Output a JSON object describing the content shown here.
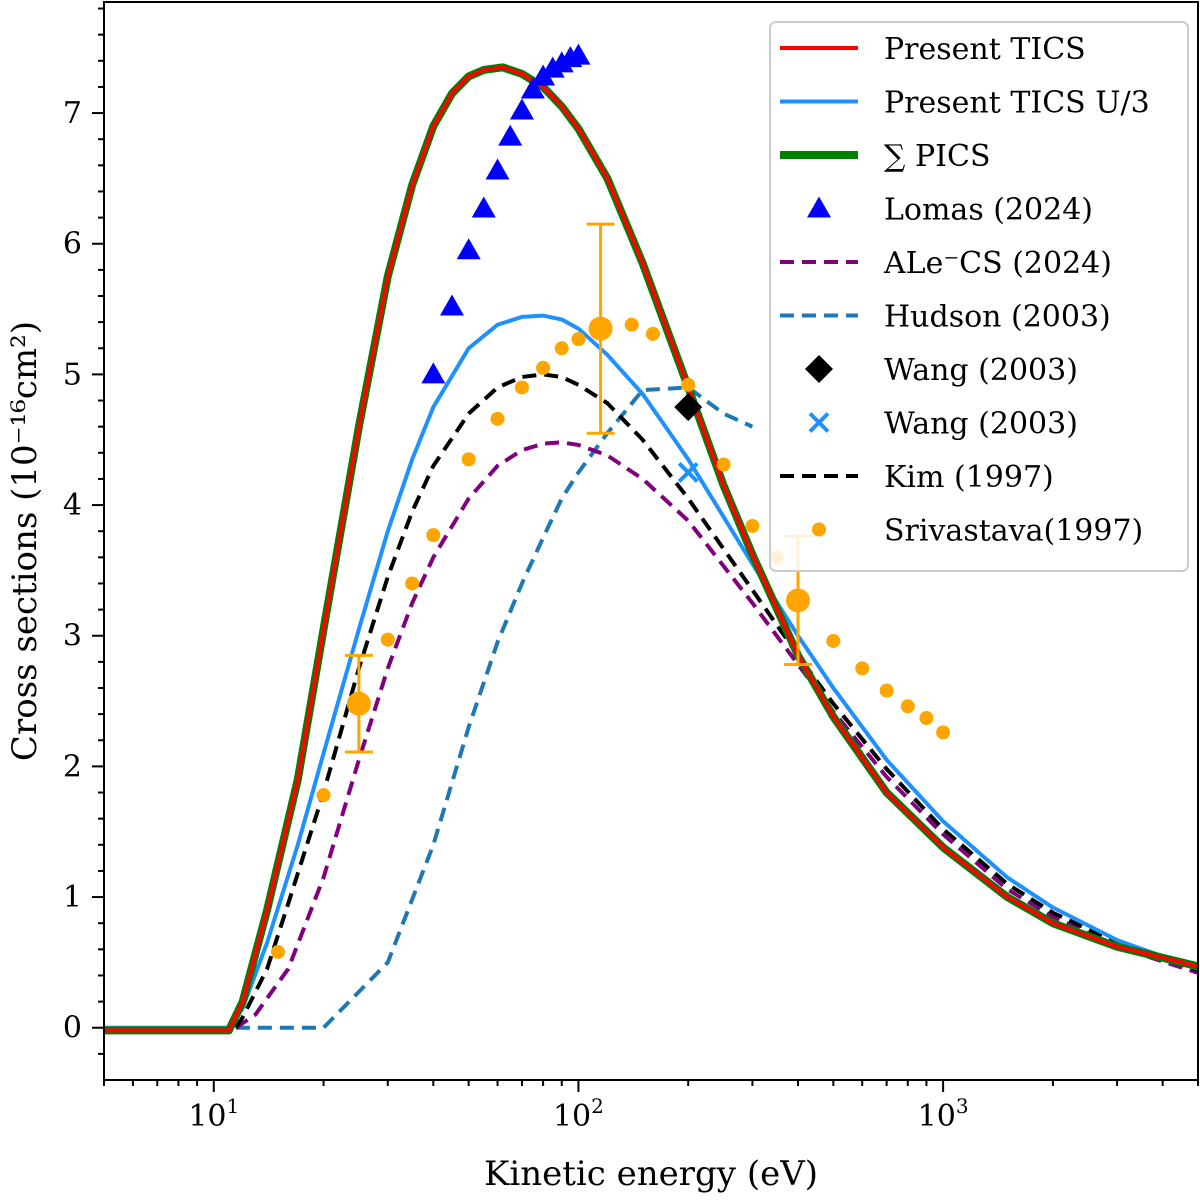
{
  "chart_data": {
    "type": "line",
    "xlabel": "Kinetic energy (eV)",
    "ylabel": "Cross sections (10⁻¹⁶cm²)",
    "xscale": "log",
    "xlim": [
      5,
      5000
    ],
    "ylim": [
      -0.4,
      7.85
    ],
    "x_ticks": [
      {
        "value": 10,
        "base": "10",
        "exp": "1"
      },
      {
        "value": 100,
        "base": "10",
        "exp": "2"
      },
      {
        "value": 1000,
        "base": "10",
        "exp": "3"
      }
    ],
    "y_ticks": [
      {
        "value": 0,
        "label": "0"
      },
      {
        "value": 1,
        "label": "1"
      },
      {
        "value": 2,
        "label": "2"
      },
      {
        "value": 3,
        "label": "3"
      },
      {
        "value": 4,
        "label": "4"
      },
      {
        "value": 5,
        "label": "5"
      },
      {
        "value": 6,
        "label": "6"
      },
      {
        "value": 7,
        "label": "7"
      }
    ],
    "grid": false,
    "legend_position": "top-right",
    "series": [
      {
        "name": "∑ PICS",
        "kind": "line",
        "color": "#008000",
        "dash": "",
        "x": [
          5,
          11,
          12,
          14,
          17,
          20,
          25,
          30,
          35,
          40,
          45,
          50,
          55,
          62,
          70,
          80,
          90,
          100,
          120,
          150,
          200,
          250,
          300,
          400,
          500,
          700,
          1000,
          1500,
          2000,
          3000,
          5000
        ],
        "y": [
          -0.02,
          -0.02,
          0.2,
          0.9,
          1.9,
          3.05,
          4.6,
          5.75,
          6.45,
          6.9,
          7.15,
          7.28,
          7.33,
          7.35,
          7.3,
          7.2,
          7.05,
          6.88,
          6.5,
          5.85,
          4.9,
          4.15,
          3.62,
          2.85,
          2.38,
          1.8,
          1.38,
          1.0,
          0.8,
          0.62,
          0.47
        ]
      },
      {
        "name": "Present TICS",
        "kind": "line",
        "color": "#ff0000",
        "dash": "",
        "x": [
          5,
          11,
          12,
          14,
          17,
          20,
          25,
          30,
          35,
          40,
          45,
          50,
          55,
          62,
          70,
          80,
          90,
          100,
          120,
          150,
          200,
          250,
          300,
          400,
          500,
          700,
          1000,
          1500,
          2000,
          3000,
          5000
        ],
        "y": [
          -0.02,
          -0.02,
          0.2,
          0.9,
          1.9,
          3.05,
          4.6,
          5.75,
          6.45,
          6.9,
          7.15,
          7.28,
          7.33,
          7.35,
          7.3,
          7.2,
          7.05,
          6.88,
          6.5,
          5.85,
          4.9,
          4.15,
          3.62,
          2.85,
          2.38,
          1.8,
          1.38,
          1.0,
          0.8,
          0.62,
          0.47
        ]
      },
      {
        "name": "Present TICS U/3",
        "kind": "line",
        "color": "#1e90ff",
        "dash": "",
        "x": [
          5,
          11,
          12,
          14,
          17,
          20,
          25,
          30,
          35,
          40,
          50,
          60,
          70,
          80,
          90,
          100,
          120,
          150,
          200,
          300,
          400,
          500,
          700,
          1000,
          1500,
          2000,
          3000,
          5000
        ],
        "y": [
          0,
          0,
          0.15,
          0.65,
          1.4,
          2.1,
          3.05,
          3.8,
          4.35,
          4.75,
          5.2,
          5.38,
          5.44,
          5.45,
          5.42,
          5.35,
          5.15,
          4.85,
          4.35,
          3.55,
          3.0,
          2.6,
          2.05,
          1.58,
          1.15,
          0.92,
          0.67,
          0.45
        ]
      },
      {
        "name": "Kim (1997)",
        "kind": "line",
        "color": "#000000",
        "dash": "14 8",
        "x": [
          11.5,
          12,
          14,
          16,
          20,
          25,
          30,
          35,
          40,
          50,
          60,
          70,
          80,
          90,
          100,
          120,
          150,
          200,
          300,
          400,
          500,
          700,
          1000,
          1500,
          2000,
          3000,
          5000
        ],
        "y": [
          0,
          0.08,
          0.45,
          0.95,
          1.8,
          2.75,
          3.45,
          3.95,
          4.3,
          4.7,
          4.9,
          4.98,
          5.0,
          4.98,
          4.92,
          4.78,
          4.5,
          4.05,
          3.35,
          2.85,
          2.48,
          1.98,
          1.52,
          1.1,
          0.88,
          0.65,
          0.44
        ]
      },
      {
        "name": "ALe⁻CS (2024)",
        "kind": "line",
        "color": "#800080",
        "dash": "14 8",
        "x": [
          11.5,
          13,
          16,
          20,
          25,
          30,
          35,
          40,
          50,
          60,
          70,
          80,
          90,
          100,
          120,
          150,
          200,
          300,
          400,
          500,
          700,
          1000,
          1500,
          2000,
          3000,
          5000
        ],
        "y": [
          0,
          0.1,
          0.45,
          1.15,
          2.05,
          2.75,
          3.25,
          3.6,
          4.05,
          4.3,
          4.42,
          4.47,
          4.48,
          4.46,
          4.38,
          4.2,
          3.88,
          3.25,
          2.78,
          2.42,
          1.92,
          1.48,
          1.06,
          0.85,
          0.62,
          0.42
        ]
      },
      {
        "name": "Hudson (2003)",
        "kind": "line",
        "color": "#1f77b4",
        "dash": "14 8",
        "x": [
          11.5,
          20,
          30,
          40,
          50,
          60,
          70,
          80,
          90,
          100,
          120,
          150,
          200,
          250,
          300
        ],
        "y": [
          0,
          0,
          0.5,
          1.4,
          2.3,
          2.95,
          3.4,
          3.75,
          4.05,
          4.25,
          4.55,
          4.88,
          4.9,
          4.7,
          4.6
        ]
      },
      {
        "name": "Lomas (2024)",
        "kind": "marker",
        "marker": "triangle",
        "color": "#0000ff",
        "x": [
          40,
          45,
          50,
          55,
          60,
          65,
          70,
          75,
          80,
          85,
          90,
          95,
          100
        ],
        "y": [
          5.0,
          5.52,
          5.95,
          6.27,
          6.56,
          6.82,
          7.02,
          7.18,
          7.28,
          7.34,
          7.38,
          7.42,
          7.44
        ]
      },
      {
        "name": "Srivastava(1997)",
        "kind": "marker",
        "marker": "circle",
        "color": "#ffa500",
        "x": [
          15,
          20,
          30,
          35,
          40,
          50,
          60,
          70,
          80,
          90,
          100,
          140,
          160,
          200,
          250,
          300,
          350,
          500,
          600,
          700,
          800,
          900,
          1000
        ],
        "y": [
          0.58,
          1.78,
          2.97,
          3.4,
          3.77,
          4.35,
          4.66,
          4.9,
          5.05,
          5.2,
          5.27,
          5.38,
          5.31,
          4.92,
          4.31,
          3.84,
          3.6,
          2.96,
          2.75,
          2.58,
          2.46,
          2.37,
          2.26
        ]
      },
      {
        "name": "Srivastava(1997) error bars",
        "kind": "errorbar",
        "color": "#ffa500",
        "x": [
          25,
          115,
          400
        ],
        "y": [
          2.48,
          5.35,
          3.27
        ],
        "err": [
          0.37,
          0.8,
          0.49
        ]
      },
      {
        "name": "Wang (2003)",
        "kind": "marker",
        "marker": "diamond",
        "color": "#000000",
        "x": [
          200
        ],
        "y": [
          4.75
        ]
      },
      {
        "name": "Wang (2003)",
        "kind": "marker",
        "marker": "x",
        "color": "#1e90ff",
        "x": [
          200
        ],
        "y": [
          4.25
        ]
      }
    ],
    "legend": [
      {
        "label": "Present TICS",
        "kind": "line",
        "color": "#ff0000",
        "dash": "",
        "width": 4
      },
      {
        "label": "Present TICS U/3",
        "kind": "line",
        "color": "#1e90ff",
        "dash": "",
        "width": 4
      },
      {
        "label": "∑ PICS",
        "kind": "line",
        "color": "#008000",
        "dash": "",
        "width": 8
      },
      {
        "label": "Lomas (2024)",
        "kind": "marker",
        "marker": "triangle",
        "color": "#0000ff"
      },
      {
        "label": "ALe⁻CS (2024)",
        "kind": "line",
        "color": "#800080",
        "dash": "14 8",
        "width": 4
      },
      {
        "label": "Hudson (2003)",
        "kind": "line",
        "color": "#1f77b4",
        "dash": "14 8",
        "width": 4
      },
      {
        "label": "Wang (2003)",
        "kind": "marker",
        "marker": "diamond",
        "color": "#000000"
      },
      {
        "label": "Wang (2003)",
        "kind": "marker",
        "marker": "x",
        "color": "#1e90ff"
      },
      {
        "label": "Kim (1997)",
        "kind": "line",
        "color": "#000000",
        "dash": "14 8",
        "width": 4
      },
      {
        "label": "Srivastava(1997)",
        "kind": "marker",
        "marker": "circle",
        "color": "#ffa500"
      }
    ]
  }
}
